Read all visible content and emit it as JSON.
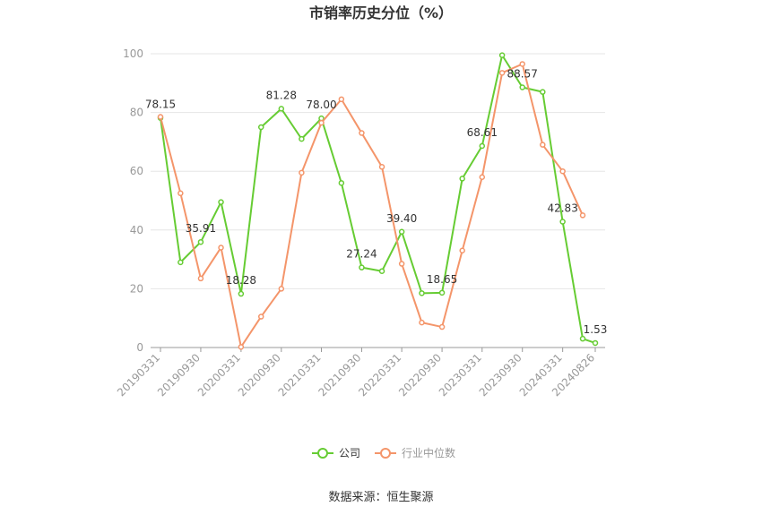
{
  "chart_data": {
    "type": "line",
    "title": "市销率历史分位（%）",
    "xlabel": "",
    "ylabel": "",
    "ylim": [
      0,
      100
    ],
    "yticks": [
      0,
      20,
      40,
      60,
      80,
      100
    ],
    "x_tick_labels": [
      "20190331",
      "20190930",
      "20200331",
      "20200930",
      "20210331",
      "20210930",
      "20220331",
      "20220930",
      "20230331",
      "20230930",
      "20240331",
      "20240826"
    ],
    "grid": "horizontal",
    "legend_position": "bottom",
    "series": [
      {
        "name": "公司",
        "color": "#66cc33",
        "points": [
          [
            "20190331",
            78.15
          ],
          [
            "20190630",
            29.0
          ],
          [
            "20190930",
            35.91
          ],
          [
            "20191231",
            49.5
          ],
          [
            "20200331",
            18.28
          ],
          [
            "20200630",
            75.0
          ],
          [
            "20200930",
            81.28
          ],
          [
            "20201231",
            71.0
          ],
          [
            "20210331",
            78.0
          ],
          [
            "20210630",
            56.0
          ],
          [
            "20210930",
            27.24
          ],
          [
            "20211231",
            26.0
          ],
          [
            "20220331",
            39.4
          ],
          [
            "20220630",
            18.5
          ],
          [
            "20220930",
            18.65
          ],
          [
            "20221231",
            57.5
          ],
          [
            "20230331",
            68.61
          ],
          [
            "20230630",
            99.5
          ],
          [
            "20230930",
            88.57
          ],
          [
            "20231231",
            87.0
          ],
          [
            "20240331",
            42.83
          ],
          [
            "20240630",
            3.0
          ],
          [
            "20240826",
            1.53
          ]
        ],
        "labels": [
          {
            "x": "20190331",
            "text": "78.15"
          },
          {
            "x": "20190930",
            "text": "35.91"
          },
          {
            "x": "20200331",
            "text": "18.28"
          },
          {
            "x": "20200930",
            "text": "81.28"
          },
          {
            "x": "20210331",
            "text": "78.00"
          },
          {
            "x": "20210930",
            "text": "27.24"
          },
          {
            "x": "20220331",
            "text": "39.40"
          },
          {
            "x": "20220930",
            "text": "18.65"
          },
          {
            "x": "20230331",
            "text": "68.61"
          },
          {
            "x": "20230930",
            "text": "88.57"
          },
          {
            "x": "20240331",
            "text": "42.83"
          },
          {
            "x": "20240826",
            "text": "1.53"
          }
        ]
      },
      {
        "name": "行业中位数",
        "color": "#f4956a",
        "points": [
          [
            "20190331",
            78.5
          ],
          [
            "20190630",
            52.5
          ],
          [
            "20190930",
            23.5
          ],
          [
            "20191231",
            34.0
          ],
          [
            "20200331",
            0.2
          ],
          [
            "20200630",
            10.5
          ],
          [
            "20200930",
            20.0
          ],
          [
            "20201231",
            59.5
          ],
          [
            "20210331",
            76.5
          ],
          [
            "20210630",
            84.5
          ],
          [
            "20210930",
            73.0
          ],
          [
            "20211231",
            61.5
          ],
          [
            "20220331",
            28.5
          ],
          [
            "20220630",
            8.5
          ],
          [
            "20220930",
            7.0
          ],
          [
            "20221231",
            33.0
          ],
          [
            "20230331",
            58.0
          ],
          [
            "20230630",
            93.5
          ],
          [
            "20230930",
            96.5
          ],
          [
            "20231231",
            69.0
          ],
          [
            "20240331",
            60.0
          ],
          [
            "20240630",
            45.0
          ]
        ]
      }
    ]
  },
  "source_text": "数据来源：恒生聚源"
}
